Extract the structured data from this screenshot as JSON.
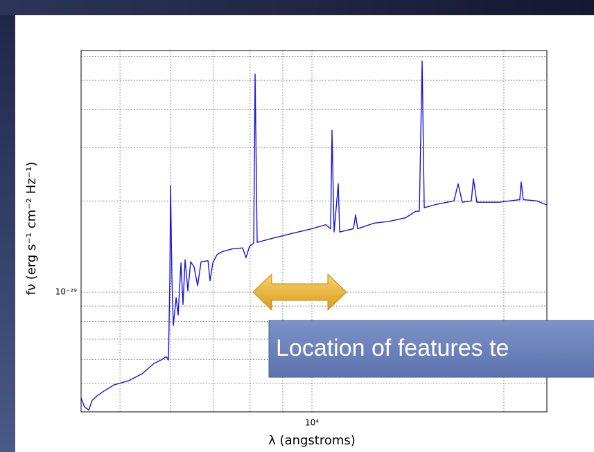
{
  "chart_data": {
    "type": "line",
    "xlabel": "λ (angstroms)",
    "ylabel": "fν (erg s⁻¹ cm⁻² Hz⁻¹)",
    "annotation": "Location of features te",
    "xscale": "log",
    "yscale": "log",
    "grid": true,
    "color": "#1515e0",
    "xlim": [
      4345,
      23360
    ],
    "ylim": [
      4.03e-30,
      6.27e-29
    ],
    "xticks": [
      {
        "value": 10000,
        "label": "10⁴"
      }
    ],
    "xminorticks": [
      5000,
      6000,
      7000,
      8000,
      9000,
      20000
    ],
    "yticks": [
      {
        "value": 1e-29,
        "label": "10⁻²⁹"
      }
    ],
    "yminorticks": [
      5e-30,
      6e-30,
      7e-30,
      8e-30,
      9e-30,
      2e-29,
      3e-29,
      4e-29,
      5e-29,
      6e-29
    ],
    "x": [
      4345,
      4400,
      4467,
      4523,
      4603,
      4719,
      4899,
      5152,
      5416,
      5652,
      5794,
      5911,
      5957,
      5987,
      6002,
      6031,
      6062,
      6124,
      6169,
      6232,
      6278,
      6326,
      6389,
      6454,
      6535,
      6618,
      6701,
      6871,
      6922,
      6992,
      7098,
      7223,
      7499,
      7786,
      7883,
      7983,
      8104,
      8145,
      8206,
      8605,
      9277,
      10000,
      10513,
      10699,
      10752,
      10834,
      10998,
      11053,
      11620,
      11708,
      11796,
      12526,
      13168,
      14024,
      14555,
      14740,
      14889,
      15002,
      15695,
      16702,
      16955,
      17215,
      17783,
      17918,
      18143,
      19658,
      21184,
      21291,
      21450,
      22555,
      23360
    ],
    "values": [
      4.47e-30,
      4.18e-30,
      4.09e-30,
      4.4e-30,
      4.55e-30,
      4.72e-30,
      4.95e-30,
      5.1e-30,
      5.38e-30,
      5.82e-30,
      5.97e-30,
      6.13e-30,
      5.97e-30,
      1.12e-29,
      2.25e-29,
      1.12e-29,
      7.77e-30,
      9.59e-30,
      8.41e-30,
      1.25e-29,
      9.1e-30,
      1.28e-29,
      1.01e-29,
      1.26e-29,
      1.21e-29,
      1.05e-29,
      1.26e-29,
      1.27e-29,
      1.09e-29,
      1.25e-29,
      1.33e-29,
      1.36e-29,
      1.39e-29,
      1.4e-29,
      1.3e-29,
      1.42e-29,
      1.45e-29,
      5.24e-29,
      1.46e-29,
      1.5e-29,
      1.56e-29,
      1.62e-29,
      1.67e-29,
      1.62e-29,
      3.42e-29,
      1.58e-29,
      2.28e-29,
      1.58e-29,
      1.62e-29,
      1.8e-29,
      1.62e-29,
      1.69e-29,
      1.71e-29,
      1.76e-29,
      1.85e-29,
      1.85e-29,
      5.79e-29,
      1.9e-29,
      1.95e-29,
      2e-29,
      2.28e-29,
      1.98e-29,
      2e-29,
      2.37e-29,
      1.98e-29,
      1.98e-29,
      2.02e-29,
      2.31e-29,
      2.02e-29,
      2e-29,
      1.94e-29
    ]
  }
}
